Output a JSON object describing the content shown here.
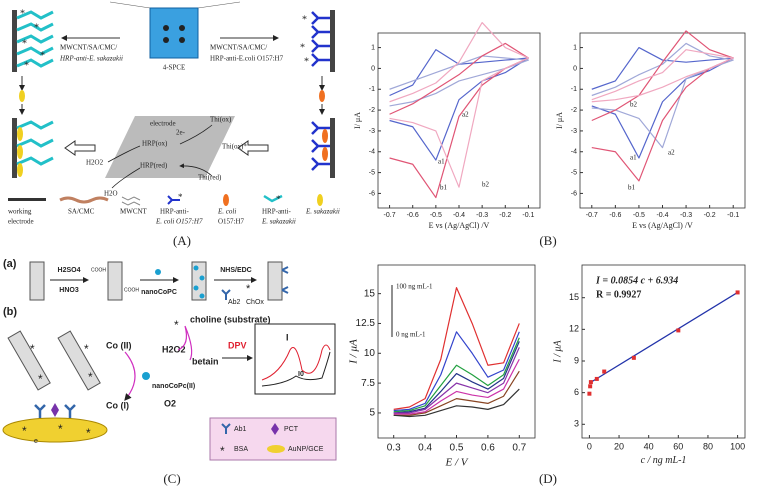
{
  "panel_labels": [
    "(A)",
    "(B)",
    "(C)",
    "(D)"
  ],
  "panel_a": {
    "spce": "4-SPCE",
    "left_label": [
      "MWCNT/SA/CMC/",
      "HRP-anti-E. sakazakii"
    ],
    "right_label": [
      "MWCNT/SA/CMC/",
      "HRP-anti-E.coli O157:H7"
    ],
    "mechanism": {
      "electrode": "electrode",
      "e": "2e-",
      "hrp_ox": "HRP(ox)",
      "hrp_red": "HRP(red)",
      "thi_ox": "Thi(ox)",
      "thi_ox_star": "Thi(ox)*",
      "thi_red": "Thi(red)",
      "h2o2": "H2O2",
      "h2o": "H2O"
    },
    "legend": [
      [
        "working",
        "electrode"
      ],
      [
        "SA/CMC"
      ],
      [
        "MWCNT"
      ],
      [
        "HRP-anti-",
        "E. coli O157:H7"
      ],
      [
        "E. coli",
        "O157:H7"
      ],
      [
        "HRP-anti-",
        "E. sakazakii"
      ],
      [
        "E. sakazakii"
      ]
    ]
  },
  "panel_c": {
    "a": {
      "label": "(a)",
      "acid1": "H2SO4",
      "acid2": "HNO3",
      "cooh": "COOH",
      "nanocopc": "nanoCoPC",
      "nhs": "NHS/EDC",
      "ab2": "Ab2",
      "chox": "ChOx"
    },
    "b": {
      "label": "(b)",
      "choline": "choline (substrate)",
      "h2o2": "H2O2",
      "betain": "betain",
      "dpv": "DPV",
      "co2": "Co (II)",
      "co1": "Co (I)",
      "nanocopc": "nanoCoPc(II)",
      "o2": "O2",
      "e": "e",
      "i": "I",
      "i0": "I0",
      "legend": [
        "Ab1",
        "PCT",
        "BSA",
        "AuNP/GCE"
      ]
    }
  },
  "chart_data": [
    {
      "type": "line",
      "xlabel": "E vs (Ag/AgCl) /V",
      "ylabel": "I/ μA",
      "xlim": [
        -0.75,
        -0.05
      ],
      "ylim": [
        -6.7,
        1.7
      ],
      "xticks": [
        -0.7,
        -0.6,
        -0.5,
        -0.4,
        -0.3,
        -0.2,
        -0.1
      ],
      "yticks": [
        1,
        0,
        -1,
        -2,
        -3,
        -4,
        -5,
        -6
      ],
      "x": [
        -0.7,
        -0.6,
        -0.5,
        -0.4,
        -0.3,
        -0.2,
        -0.1,
        -0.2,
        -0.3,
        -0.4,
        -0.5,
        -0.6,
        -0.7
      ],
      "series": [
        {
          "name": "a1",
          "color": "#5566cc",
          "values": [
            -1.3,
            -0.8,
            0.9,
            0.2,
            0.3,
            0.4,
            0.5,
            -0.2,
            -0.6,
            -1.5,
            -4.4,
            -2.8,
            -2.5
          ]
        },
        {
          "name": "a2",
          "color": "#a0a8d8",
          "values": [
            -1.0,
            -0.6,
            -0.2,
            0.2,
            0.6,
            0.5,
            0.4,
            0.0,
            -0.3,
            -0.6,
            -1.2,
            -1.6,
            -1.8
          ]
        },
        {
          "name": "b1",
          "color": "#e05575",
          "values": [
            -2.2,
            -1.7,
            -1.0,
            -0.3,
            0.6,
            1.2,
            0.5,
            0.0,
            -0.8,
            -2.3,
            -6.2,
            -4.6,
            -4.3
          ]
        },
        {
          "name": "b2",
          "color": "#f0a8c0",
          "values": [
            -1.6,
            -1.2,
            -0.7,
            0.3,
            2.2,
            1.0,
            0.5,
            0.0,
            -0.6,
            -5.7,
            -3.0,
            -2.6,
            -2.4
          ]
        }
      ]
    },
    {
      "type": "line",
      "xlabel": "E vs (Ag/AgCl) /V",
      "ylabel": "I/ μA",
      "xlim": [
        -0.75,
        -0.05
      ],
      "ylim": [
        -6.7,
        1.7
      ],
      "xticks": [
        -0.7,
        -0.6,
        -0.5,
        -0.4,
        -0.3,
        -0.2,
        -0.1
      ],
      "yticks": [
        1,
        0,
        -1,
        -2,
        -3,
        -4,
        -5,
        -6
      ],
      "x": [
        -0.7,
        -0.6,
        -0.5,
        -0.4,
        -0.3,
        -0.2,
        -0.1,
        -0.2,
        -0.3,
        -0.4,
        -0.5,
        -0.6,
        -0.7
      ],
      "series": [
        {
          "name": "a1",
          "color": "#5566cc",
          "values": [
            -1.0,
            -0.6,
            1.0,
            0.4,
            0.3,
            0.4,
            0.5,
            -0.1,
            -0.5,
            -1.6,
            -4.3,
            -2.2,
            -1.8
          ]
        },
        {
          "name": "a2",
          "color": "#a0a8d8",
          "values": [
            -1.3,
            -0.9,
            -0.3,
            0.2,
            1.2,
            0.6,
            0.4,
            0.0,
            -0.5,
            -3.8,
            -2.4,
            -2.0,
            -1.9
          ]
        },
        {
          "name": "b1",
          "color": "#e05575",
          "values": [
            -2.5,
            -2.0,
            -1.3,
            0.3,
            1.8,
            0.9,
            0.5,
            0.0,
            -0.9,
            -2.5,
            -5.4,
            -4.0,
            -3.8
          ]
        },
        {
          "name": "b2",
          "color": "#f0a8c0",
          "values": [
            -1.5,
            -1.1,
            -0.6,
            -0.2,
            0.9,
            0.7,
            0.5,
            0.0,
            -0.4,
            -0.9,
            -1.3,
            -1.5,
            -1.6
          ]
        }
      ]
    },
    {
      "type": "line",
      "xlabel": "E / V",
      "ylabel": "I / μA",
      "xlim": [
        0.25,
        0.75
      ],
      "ylim": [
        2.9,
        17.4
      ],
      "xticks": [
        0.3,
        0.4,
        0.5,
        0.6,
        0.7
      ],
      "yticks": [
        5,
        7.5,
        10,
        12.5,
        15
      ],
      "annotations": [
        "100 ng mL-1",
        "0 ng mL-1"
      ],
      "x": [
        0.3,
        0.35,
        0.4,
        0.45,
        0.5,
        0.55,
        0.6,
        0.65,
        0.7
      ],
      "series": [
        {
          "color": "#e03030",
          "values": [
            5.3,
            5.5,
            6.2,
            9.5,
            15.5,
            12.5,
            9.0,
            9.2,
            12.5
          ]
        },
        {
          "color": "#3344cc",
          "values": [
            5.2,
            5.3,
            5.8,
            8.2,
            11.8,
            10.0,
            8.0,
            8.6,
            11.8
          ]
        },
        {
          "color": "#22a040",
          "values": [
            5.1,
            5.2,
            5.6,
            7.3,
            9.0,
            8.2,
            7.3,
            8.2,
            11.3
          ]
        },
        {
          "color": "#223388",
          "values": [
            5.0,
            5.1,
            5.4,
            6.8,
            8.3,
            7.6,
            7.0,
            7.9,
            11.0
          ]
        },
        {
          "color": "#8833aa",
          "values": [
            5.0,
            5.0,
            5.3,
            6.4,
            7.5,
            7.1,
            6.7,
            7.5,
            10.5
          ]
        },
        {
          "color": "#cc33aa",
          "values": [
            4.9,
            4.9,
            5.1,
            6.0,
            6.8,
            6.5,
            6.3,
            7.0,
            9.5
          ]
        },
        {
          "color": "#884422",
          "values": [
            4.8,
            4.8,
            5.0,
            5.6,
            6.2,
            6.0,
            5.8,
            6.4,
            8.5
          ]
        },
        {
          "color": "#333333",
          "values": [
            4.8,
            4.7,
            4.8,
            5.2,
            5.6,
            5.5,
            5.3,
            5.7,
            7.0
          ]
        }
      ]
    },
    {
      "type": "scatter",
      "xlabel": "c / ng mL-1",
      "ylabel": "I / μA",
      "xlim": [
        -5,
        105
      ],
      "ylim": [
        1.7,
        18.1
      ],
      "xticks": [
        0,
        20,
        40,
        60,
        80,
        100
      ],
      "yticks": [
        3,
        6,
        9,
        12,
        15
      ],
      "annotations": [
        "I = 0.0854 c + 6.934",
        "R = 0.9927"
      ],
      "x": [
        0,
        0.5,
        1,
        5,
        10,
        30,
        60,
        100
      ],
      "values": [
        5.9,
        6.6,
        7.0,
        7.3,
        8.0,
        9.3,
        11.9,
        15.5
      ],
      "color": "#e03030",
      "fit": {
        "x": [
          0,
          100
        ],
        "values": [
          6.9,
          15.5
        ],
        "color": "#2233aa"
      }
    }
  ]
}
